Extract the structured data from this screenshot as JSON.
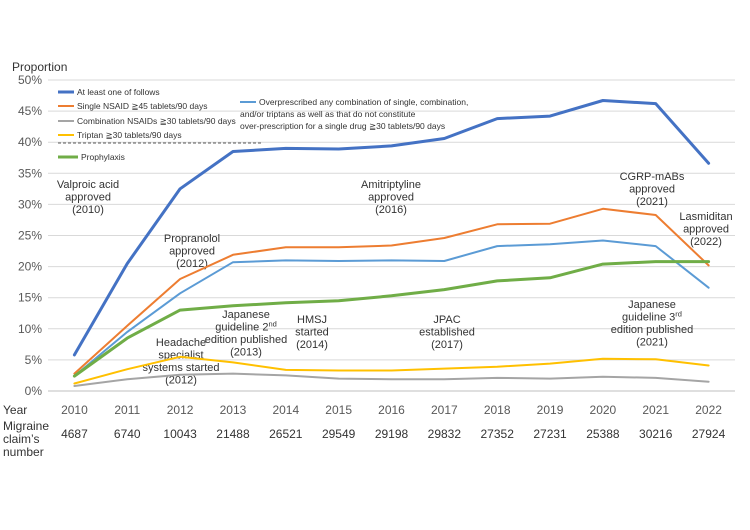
{
  "chart_data": {
    "type": "line",
    "ylabel": "Proportion",
    "ylim": [
      0,
      50
    ],
    "ytick_labels": [
      "0%",
      "5%",
      "10%",
      "15%",
      "20%",
      "25%",
      "30%",
      "35%",
      "40%",
      "45%",
      "50%"
    ],
    "x_row_label": "Year",
    "categories": [
      "2010",
      "2011",
      "2012",
      "2013",
      "2014",
      "2015",
      "2016",
      "2017",
      "2018",
      "2019",
      "2020",
      "2021",
      "2022"
    ],
    "claims_label": [
      "Migraine",
      "claim’s",
      "number"
    ],
    "claims": [
      "4687",
      "6740",
      "10043",
      "21488",
      "26521",
      "29549",
      "29198",
      "29832",
      "27352",
      "27231",
      "25388",
      "30216",
      "27924"
    ],
    "series": [
      {
        "name": "At least one of follows",
        "color": "#4472c4",
        "width": 3,
        "values": [
          5.8,
          20.5,
          32.5,
          38.5,
          39.0,
          38.9,
          39.4,
          40.6,
          43.8,
          44.2,
          46.7,
          46.2,
          36.6
        ]
      },
      {
        "name": "Single NSAID ≧45 tablets/90 days",
        "color": "#ed7d31",
        "width": 2,
        "values": [
          2.8,
          10.5,
          18.0,
          21.9,
          23.1,
          23.1,
          23.4,
          24.6,
          26.8,
          26.9,
          29.3,
          28.3,
          20.2
        ]
      },
      {
        "name": "Overprescribed any combination of single, combination, and/or triptans as well as that do not constitute over-prescription for a single drug ≧30 tablets/90 days",
        "color": "#5b9bd5",
        "width": 2,
        "values": [
          2.4,
          9.5,
          15.7,
          20.7,
          21.0,
          20.9,
          21.0,
          20.9,
          23.3,
          23.6,
          24.2,
          23.3,
          16.6
        ]
      },
      {
        "name": "Combination NSAIDs ≧30 tablets/90 days",
        "color": "#a5a5a5",
        "width": 2,
        "values": [
          0.8,
          1.9,
          2.6,
          2.8,
          2.5,
          2.0,
          1.9,
          1.9,
          2.1,
          2.0,
          2.3,
          2.1,
          1.5
        ]
      },
      {
        "name": "Triptan ≧30 tablets/90 days",
        "color": "#ffc000",
        "width": 2,
        "values": [
          1.2,
          3.5,
          5.5,
          4.6,
          3.4,
          3.3,
          3.3,
          3.6,
          3.9,
          4.4,
          5.2,
          5.1,
          4.1
        ]
      },
      {
        "name": "Prophylaxis",
        "color": "#70ad47",
        "width": 3,
        "values": [
          2.4,
          8.5,
          13.0,
          13.7,
          14.2,
          14.5,
          15.3,
          16.3,
          17.7,
          18.2,
          20.4,
          20.8,
          20.8
        ]
      }
    ],
    "annotations": [
      {
        "lines": [
          "Valproic acid",
          "approved",
          "(2010)"
        ]
      },
      {
        "lines": [
          "Propranolol",
          "approved",
          "(2012)"
        ]
      },
      {
        "lines": [
          "Japanese",
          "guideline 2nd",
          "edition published",
          "(2013)"
        ]
      },
      {
        "lines": [
          "Headache",
          "specialist",
          "systems started",
          "(2012)"
        ]
      },
      {
        "lines": [
          "HMSJ",
          "started",
          "(2014)"
        ]
      },
      {
        "lines": [
          "Amitriptyline",
          "approved",
          "(2016)"
        ]
      },
      {
        "lines": [
          "JPAC",
          "established",
          "(2017)"
        ]
      },
      {
        "lines": [
          "CGRP-mABs",
          "approved",
          "(2021)"
        ]
      },
      {
        "lines": [
          "Lasmiditan",
          "approved",
          "(2022)"
        ]
      },
      {
        "lines": [
          "Japanese",
          "guideline 3rd",
          "edition published",
          "(2021)"
        ]
      }
    ]
  }
}
